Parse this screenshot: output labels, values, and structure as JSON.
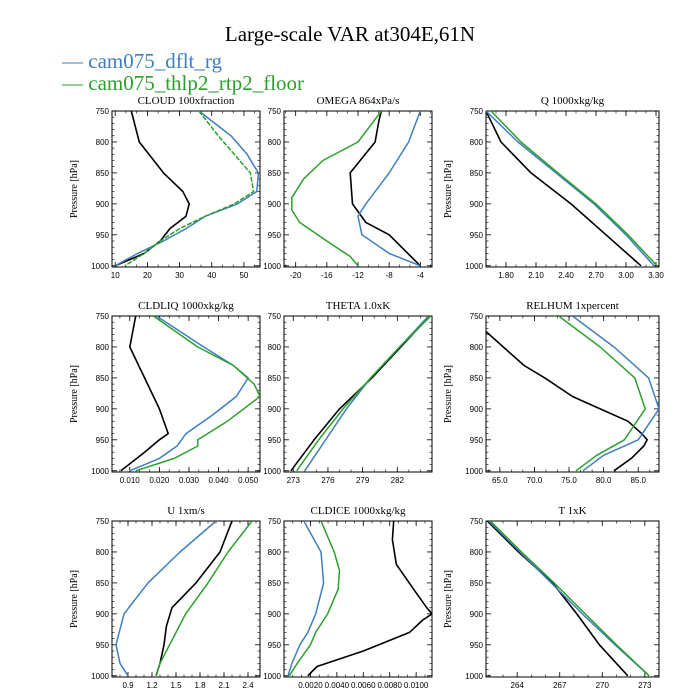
{
  "title": "Large-scale VAR at304E,61N",
  "legend": [
    {
      "label": "— cam075_dflt_rg",
      "color": "#3f7fbf"
    },
    {
      "label": "— cam075_thlp2_rtp2_floor",
      "color": "#2ca02c"
    }
  ],
  "colors": {
    "black_series": "#000000",
    "blue_series": "#3f7fbf",
    "green_series": "#2ca02c"
  },
  "chart_data": [
    {
      "type": "line",
      "title": "CLOUD  100xfraction",
      "ylabel": "Pressure [hPa]",
      "xlim": [
        9,
        55
      ],
      "ylim": [
        1002,
        750
      ],
      "xticks": [
        10,
        20,
        30,
        40,
        50
      ],
      "xtick_labels": [
        "10",
        "20",
        "30",
        "40",
        "50"
      ],
      "yticks": [
        750,
        800,
        850,
        900,
        950,
        1000
      ],
      "ytick_labels": [
        "750",
        "800",
        "850",
        "900",
        "950",
        "1000"
      ],
      "series": [
        {
          "color": "black",
          "pressure": [
            750,
            800,
            850,
            880,
            900,
            920,
            940,
            960,
            980,
            1000
          ],
          "values": [
            15,
            17.5,
            25,
            31,
            33,
            32,
            27,
            24,
            19,
            10
          ]
        },
        {
          "color": "blue",
          "pressure": [
            750,
            790,
            820,
            850,
            880,
            900,
            920,
            940,
            960,
            980,
            1000
          ],
          "values": [
            36,
            46,
            51,
            54.5,
            54,
            48,
            38,
            32,
            25,
            17,
            10
          ]
        },
        {
          "color": "green",
          "pressure": [
            750,
            790,
            820,
            850,
            880,
            900,
            920,
            940,
            960,
            980,
            1000
          ],
          "values": [
            36,
            42,
            47,
            52,
            53,
            47,
            38,
            30,
            24,
            19,
            13
          ],
          "dashed": true
        }
      ]
    },
    {
      "type": "line",
      "title": "OMEGA  864xPa/s",
      "ylabel": "",
      "xlim": [
        -21.5,
        -2.5
      ],
      "ylim": [
        1002,
        750
      ],
      "xticks": [
        -20,
        -16,
        -12,
        -8,
        -4
      ],
      "xtick_labels": [
        "-20",
        "-16",
        "-12",
        "-8",
        "-4"
      ],
      "yticks": [
        750,
        800,
        850,
        900,
        950,
        1000
      ],
      "ytick_labels": [
        "750",
        "800",
        "850",
        "900",
        "950",
        "1000"
      ],
      "series": [
        {
          "color": "black",
          "pressure": [
            750,
            765,
            800,
            850,
            900,
            930,
            950,
            975,
            1000
          ],
          "values": [
            -9,
            -9.3,
            -9.8,
            -13,
            -12.7,
            -11,
            -8,
            -6,
            -4
          ]
        },
        {
          "color": "blue",
          "pressure": [
            750,
            800,
            850,
            900,
            920,
            950,
            980,
            1000
          ],
          "values": [
            -4,
            -5.5,
            -8,
            -11,
            -12,
            -11.5,
            -8,
            -4
          ]
        },
        {
          "color": "green",
          "pressure": [
            750,
            800,
            830,
            860,
            890,
            910,
            930,
            960,
            985,
            1000
          ],
          "values": [
            -9,
            -12,
            -16.5,
            -19,
            -20.5,
            -20.5,
            -19.5,
            -16,
            -13,
            -12
          ]
        }
      ]
    },
    {
      "type": "line",
      "title": "Q  1000xkg/kg",
      "ylabel": "Pressure [hPa]",
      "xlim": [
        1.6,
        3.33
      ],
      "ylim": [
        1002,
        750
      ],
      "xticks": [
        1.8,
        2.1,
        2.4,
        2.7,
        3.0,
        3.3
      ],
      "xtick_labels": [
        "1.80",
        "2.10",
        "2.40",
        "2.70",
        "3.00",
        "3.30"
      ],
      "yticks": [
        750,
        800,
        850,
        900,
        950,
        1000
      ],
      "ytick_labels": [
        "750",
        "800",
        "850",
        "900",
        "950",
        "1000"
      ],
      "series": [
        {
          "color": "black",
          "pressure": [
            750,
            800,
            850,
            900,
            950,
            1000
          ],
          "values": [
            1.6,
            1.75,
            2.05,
            2.45,
            2.8,
            3.15
          ]
        },
        {
          "color": "blue",
          "pressure": [
            750,
            800,
            850,
            900,
            950,
            1000
          ],
          "values": [
            1.6,
            1.92,
            2.3,
            2.68,
            3.0,
            3.28
          ]
        },
        {
          "color": "green",
          "pressure": [
            750,
            800,
            850,
            900,
            950,
            1000
          ],
          "values": [
            1.65,
            1.95,
            2.32,
            2.7,
            3.02,
            3.31
          ]
        }
      ]
    },
    {
      "type": "line",
      "title": "CLDLIQ  1000xkg/kg",
      "ylabel": "Pressure [hPa]",
      "xlim": [
        0.004,
        0.054
      ],
      "ylim": [
        1002,
        750
      ],
      "xticks": [
        0.01,
        0.02,
        0.03,
        0.04,
        0.05
      ],
      "xtick_labels": [
        "0.010",
        "0.020",
        "0.030",
        "0.040",
        "0.050"
      ],
      "yticks": [
        750,
        800,
        850,
        900,
        950,
        1000
      ],
      "ytick_labels": [
        "750",
        "800",
        "850",
        "900",
        "950",
        "1000"
      ],
      "series": [
        {
          "color": "black",
          "pressure": [
            750,
            800,
            850,
            900,
            940,
            950,
            970,
            1000
          ],
          "values": [
            0.012,
            0.01,
            0.015,
            0.02,
            0.023,
            0.02,
            0.015,
            0.007
          ]
        },
        {
          "color": "blue",
          "pressure": [
            750,
            800,
            830,
            850,
            880,
            910,
            940,
            960,
            980,
            1000
          ],
          "values": [
            0.019,
            0.035,
            0.045,
            0.05,
            0.046,
            0.038,
            0.029,
            0.026,
            0.02,
            0.01
          ]
        },
        {
          "color": "green",
          "pressure": [
            750,
            800,
            830,
            860,
            880,
            920,
            950,
            960,
            980,
            1000
          ],
          "values": [
            0.018,
            0.033,
            0.045,
            0.052,
            0.054,
            0.043,
            0.033,
            0.033,
            0.025,
            0.012
          ]
        }
      ]
    },
    {
      "type": "line",
      "title": "THETA  1.0xK",
      "ylabel": "",
      "xlim": [
        272.2,
        285
      ],
      "ylim": [
        1002,
        750
      ],
      "xticks": [
        273,
        276,
        279,
        282
      ],
      "xtick_labels": [
        "273",
        "276",
        "279",
        "282"
      ],
      "yticks": [
        750,
        800,
        850,
        900,
        950,
        1000
      ],
      "ytick_labels": [
        "750",
        "800",
        "850",
        "900",
        "950",
        "1000"
      ],
      "series": [
        {
          "color": "black",
          "pressure": [
            750,
            800,
            850,
            900,
            950,
            1000
          ],
          "values": [
            284.8,
            282.3,
            279.8,
            277,
            274.8,
            272.8
          ]
        },
        {
          "color": "blue",
          "pressure": [
            750,
            800,
            850,
            900,
            950,
            1000
          ],
          "values": [
            284.7,
            282.2,
            279.7,
            277.6,
            275.8,
            274
          ]
        },
        {
          "color": "green",
          "pressure": [
            750,
            800,
            850,
            900,
            950,
            1000
          ],
          "values": [
            284.9,
            282.2,
            279.7,
            277.3,
            275.2,
            273.3
          ]
        }
      ]
    },
    {
      "type": "line",
      "title": "RELHUM  1xpercent",
      "ylabel": "Pressure [hPa]",
      "xlim": [
        63,
        88
      ],
      "ylim": [
        1002,
        750
      ],
      "xticks": [
        65,
        70,
        75,
        80,
        85
      ],
      "xtick_labels": [
        "65.0",
        "70.0",
        "75.0",
        "80.0",
        "85.0"
      ],
      "yticks": [
        750,
        800,
        850,
        900,
        950,
        1000
      ],
      "ytick_labels": [
        "750",
        "800",
        "850",
        "900",
        "950",
        "1000"
      ],
      "series": [
        {
          "color": "black",
          "pressure": [
            775,
            800,
            830,
            850,
            880,
            900,
            920,
            940,
            950,
            960,
            980,
            1000
          ],
          "values": [
            63,
            65.5,
            68.5,
            71.5,
            75.5,
            79.5,
            83.5,
            85.5,
            86.3,
            85.8,
            84,
            81.5
          ]
        },
        {
          "color": "blue",
          "pressure": [
            750,
            800,
            850,
            900,
            950,
            975,
            1000
          ],
          "values": [
            75.5,
            81.5,
            86.5,
            88,
            85,
            80,
            77
          ]
        },
        {
          "color": "green",
          "pressure": [
            750,
            800,
            850,
            900,
            950,
            975,
            1000
          ],
          "values": [
            73.5,
            79.5,
            84.5,
            86,
            83,
            79,
            76
          ]
        }
      ]
    },
    {
      "type": "line",
      "title": "U  1xm/s",
      "ylabel": "Pressure [hPa]",
      "xlim": [
        0.7,
        2.55
      ],
      "ylim": [
        1002,
        750
      ],
      "xticks": [
        0.9,
        1.2,
        1.5,
        1.8,
        2.1,
        2.4
      ],
      "xtick_labels": [
        "0.9",
        "1.2",
        "1.5",
        "1.8",
        "2.1",
        "2.4"
      ],
      "yticks": [
        750,
        800,
        850,
        900,
        950,
        1000
      ],
      "ytick_labels": [
        "750",
        "800",
        "850",
        "900",
        "950",
        "1000"
      ],
      "series": [
        {
          "color": "black",
          "pressure": [
            750,
            800,
            850,
            890,
            920,
            950,
            980,
            1000
          ],
          "values": [
            2.2,
            2.05,
            1.75,
            1.45,
            1.38,
            1.35,
            1.3,
            1.25
          ]
        },
        {
          "color": "blue",
          "pressure": [
            750,
            800,
            850,
            900,
            950,
            980,
            1000
          ],
          "values": [
            2.0,
            1.55,
            1.15,
            0.85,
            0.75,
            0.8,
            0.9
          ]
        },
        {
          "color": "green",
          "pressure": [
            750,
            800,
            850,
            900,
            950,
            980,
            1000
          ],
          "values": [
            2.45,
            2.15,
            1.9,
            1.62,
            1.42,
            1.3,
            1.25
          ]
        }
      ]
    },
    {
      "type": "line",
      "title": "CLDICE  1000xkg/kg",
      "ylabel": "",
      "xlim": [
        0,
        0.0112
      ],
      "ylim": [
        1002,
        750
      ],
      "xticks": [
        0.002,
        0.004,
        0.006,
        0.008,
        0.01
      ],
      "xtick_labels": [
        "0.0020",
        "0.0040",
        "0.0060",
        "0.0080",
        "0.0100"
      ],
      "yticks": [
        750,
        800,
        850,
        900,
        950,
        1000
      ],
      "ytick_labels": [
        "750",
        "800",
        "850",
        "900",
        "950",
        "1000"
      ],
      "series": [
        {
          "color": "black",
          "pressure": [
            750,
            780,
            820,
            860,
            890,
            900,
            910,
            930,
            960,
            985,
            1000
          ],
          "values": [
            0.0083,
            0.0082,
            0.0085,
            0.0098,
            0.0108,
            0.0112,
            0.0105,
            0.0095,
            0.006,
            0.0025,
            0.0018
          ]
        },
        {
          "color": "blue",
          "pressure": [
            750,
            800,
            850,
            900,
            930,
            950,
            980,
            1000
          ],
          "values": [
            0.0015,
            0.0028,
            0.003,
            0.0024,
            0.0018,
            0.0012,
            0.0006,
            0.0003
          ]
        },
        {
          "color": "green",
          "pressure": [
            750,
            800,
            830,
            860,
            900,
            930,
            950,
            980,
            1000
          ],
          "values": [
            0.0028,
            0.0038,
            0.0042,
            0.0041,
            0.0033,
            0.0024,
            0.002,
            0.001,
            0.0004
          ]
        }
      ]
    },
    {
      "type": "line",
      "title": "T  1xK",
      "ylabel": "Pressure [hPa]",
      "xlim": [
        261.8,
        274
      ],
      "ylim": [
        1002,
        750
      ],
      "xticks": [
        264,
        267,
        270,
        273
      ],
      "xtick_labels": [
        "264",
        "267",
        "270",
        "273"
      ],
      "yticks": [
        750,
        800,
        850,
        900,
        950,
        1000
      ],
      "ytick_labels": [
        "750",
        "800",
        "850",
        "900",
        "950",
        "1000"
      ],
      "series": [
        {
          "color": "black",
          "pressure": [
            750,
            800,
            850,
            900,
            950,
            1000
          ],
          "values": [
            261.9,
            264.1,
            266.5,
            268.2,
            269.8,
            271.8
          ]
        },
        {
          "color": "blue",
          "pressure": [
            750,
            800,
            850,
            900,
            950,
            1000
          ],
          "values": [
            262.0,
            264.2,
            266.4,
            268.6,
            270.9,
            273.3
          ]
        },
        {
          "color": "green",
          "pressure": [
            750,
            800,
            850,
            900,
            950,
            1000
          ],
          "values": [
            262.1,
            264.3,
            266.6,
            268.8,
            271.0,
            273.3
          ]
        }
      ]
    }
  ]
}
